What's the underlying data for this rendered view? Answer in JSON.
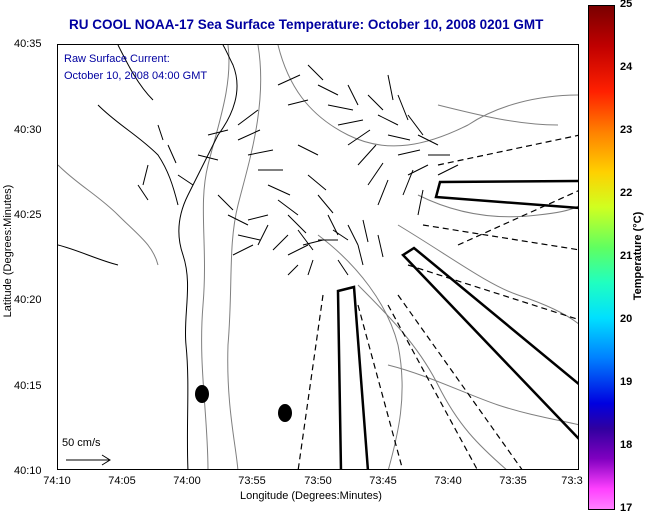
{
  "title": "RU COOL  NOAA-17  Sea Surface Temperature:  October 10, 2008 0201 GMT",
  "annotation": {
    "line1": "Raw Surface Current:",
    "line2": "October 10, 2008 04:00 GMT"
  },
  "axes": {
    "xlabel": "Longitude (Degrees:Minutes)",
    "ylabel": "Latitude (Degrees:Minutes)",
    "xticks": [
      "74:10",
      "74:05",
      "74:00",
      "73:55",
      "73:50",
      "73:45",
      "73:40",
      "73:35",
      "73:3"
    ],
    "yticks": [
      "40:35",
      "40:30",
      "40:25",
      "40:20",
      "40:15",
      "40:10"
    ]
  },
  "colorbar": {
    "title": "Temperature (°C)",
    "ticks": [
      "25",
      "24",
      "23",
      "22",
      "21",
      "20",
      "19",
      "18",
      "17"
    ]
  },
  "scale": {
    "label": "50 cm/s"
  }
}
